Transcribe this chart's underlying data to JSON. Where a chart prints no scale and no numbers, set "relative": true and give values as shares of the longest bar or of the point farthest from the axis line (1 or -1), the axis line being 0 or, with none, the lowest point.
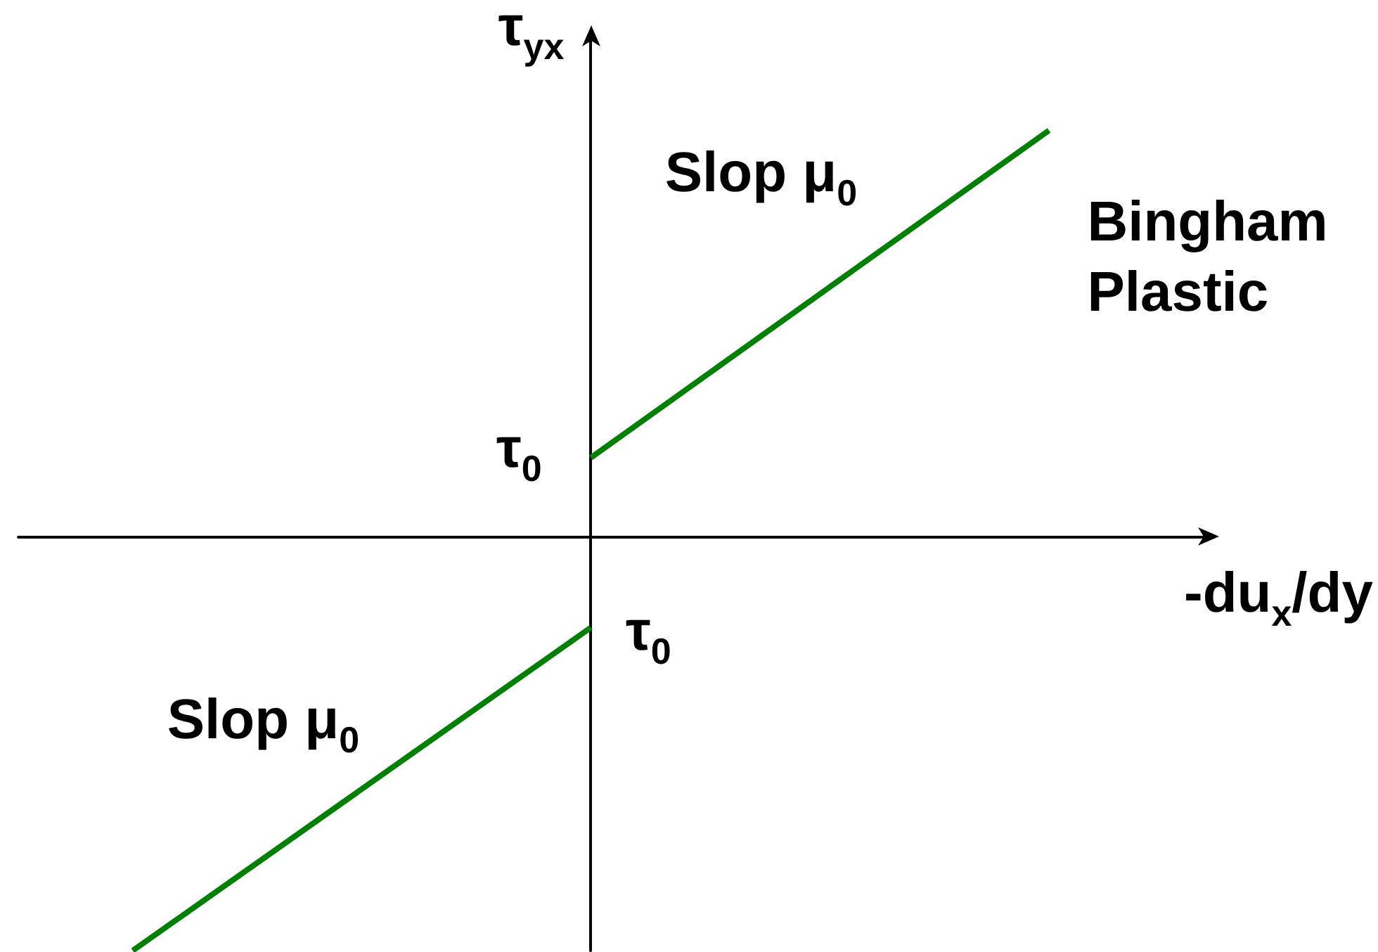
{
  "chart_data": {
    "type": "line",
    "relative": true,
    "xlabel": "-du$_{x}$/dy",
    "ylabel": "τ$_{yx}$",
    "categories": [
      null,
      null,
      null
    ],
    "series": [
      {
        "color": "#008000",
        "values": [
          -1,
          -0.22,
          null
        ]
      },
      {
        "color": "#008000",
        "values": [
          null,
          0.19,
          0.98
        ]
      }
    ],
    "annotations": [
      "Slop μ$_{0}$",
      "Bingham Plastic",
      "τ$_{0}$",
      "τ$_{0}$",
      "Slop μ$_{0}$"
    ],
    "marker": "none",
    "line_style": "solid"
  }
}
